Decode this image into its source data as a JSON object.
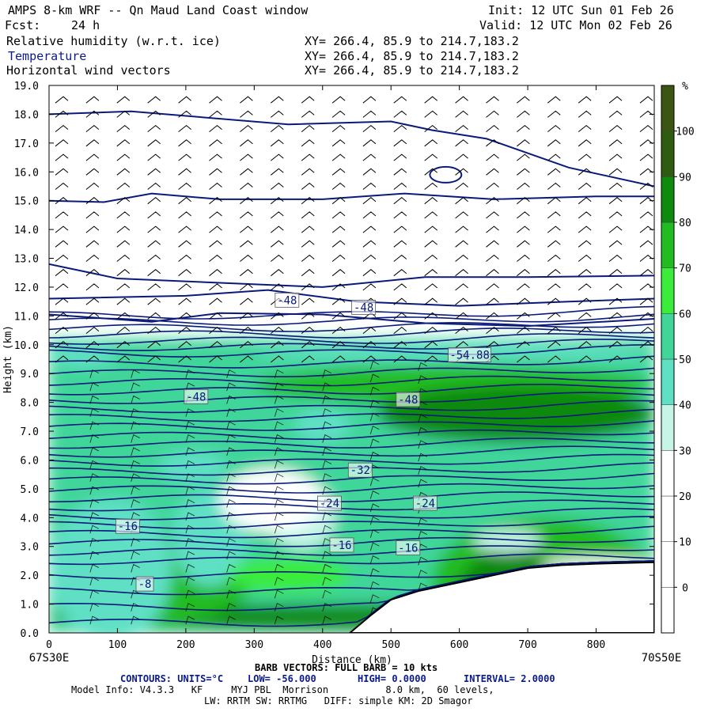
{
  "header": {
    "model_title": "AMPS 8-km WRF -- Qn Maud Land Coast window",
    "init": "Init: 12 UTC Sun 01 Feb 26",
    "fcst_label": "Fcst:",
    "fcst_value": "24 h",
    "valid": "Valid: 12 UTC Mon 02 Feb 26",
    "fields": [
      {
        "name": "Relative humidity (w.r.t. ice)",
        "xy": "XY= 266.4, 85.9 to 214.7,183.2"
      },
      {
        "name": "Temperature",
        "xy": "XY= 266.4, 85.9 to 214.7,183.2"
      },
      {
        "name": "Horizontal wind vectors",
        "xy": "XY= 266.4, 85.9 to 214.7,183.2"
      }
    ]
  },
  "chart_data": {
    "type": "heatmap",
    "xlabel": "Distance (km)",
    "ylabel": "Height (km)",
    "xlim": [
      0,
      885
    ],
    "ylim": [
      0,
      19
    ],
    "x_ticks": [
      "0",
      "100",
      "200",
      "300",
      "400",
      "500",
      "600",
      "700",
      "800"
    ],
    "y_ticks": [
      "0.0",
      "1.0",
      "2.0",
      "3.0",
      "4.0",
      "5.0",
      "6.0",
      "7.0",
      "8.0",
      "9.0",
      "10.0",
      "11.0",
      "12.0",
      "13.0",
      "14.0",
      "15.0",
      "16.0",
      "17.0",
      "18.0",
      "19.0"
    ],
    "left_endpoint": "67S30E",
    "right_endpoint": "70S50E",
    "colorbar": {
      "unit": "%",
      "labels": [
        "0",
        "10",
        "20",
        "30",
        "40",
        "50",
        "60",
        "70",
        "80",
        "90",
        "100"
      ],
      "colors": [
        "#ffffff",
        "#ffffff",
        "#ffffff",
        "#ffffff",
        "#c6f5e8",
        "#5fe0c4",
        "#40d69a",
        "#3bec3b",
        "#22bc22",
        "#0e8a0e",
        "#2f5c10",
        "#3a5612"
      ]
    },
    "temperature_labels": [
      {
        "text": "-48",
        "x": 348,
        "y": 11.55
      },
      {
        "text": "-48",
        "x": 460,
        "y": 11.3
      },
      {
        "text": "-54.88",
        "x": 615,
        "y": 9.65
      },
      {
        "text": "-48",
        "x": 215,
        "y": 8.2
      },
      {
        "text": "-48",
        "x": 525,
        "y": 8.1
      },
      {
        "text": "-32",
        "x": 455,
        "y": 5.65
      },
      {
        "text": "-24",
        "x": 410,
        "y": 4.5
      },
      {
        "text": "-24",
        "x": 550,
        "y": 4.5
      },
      {
        "text": "-16",
        "x": 115,
        "y": 3.7
      },
      {
        "text": "-16",
        "x": 428,
        "y": 3.05
      },
      {
        "text": "-16",
        "x": 525,
        "y": 2.95
      },
      {
        "text": "-8",
        "x": 140,
        "y": 1.7
      }
    ],
    "terrain_profile": [
      [
        440,
        0
      ],
      [
        470,
        0.6
      ],
      [
        500,
        1.15
      ],
      [
        540,
        1.45
      ],
      [
        580,
        1.65
      ],
      [
        620,
        1.85
      ],
      [
        660,
        2.05
      ],
      [
        700,
        2.25
      ],
      [
        750,
        2.35
      ],
      [
        800,
        2.4
      ],
      [
        885,
        2.45
      ]
    ]
  },
  "footer": {
    "barb_note": "BARB VECTORS: FULL BARB = 10 kts",
    "contours_units": "CONTOURS: UNITS=°C",
    "low": "LOW= -56.000",
    "high": "HIGH= 0.0000",
    "interval": "INTERVAL= 2.0000",
    "model_info": "Model Info: V4.3.3   KF     MYJ PBL  Morrison          8.0 km,  60 levels,",
    "physics": "LW: RRTM SW: RRTMG   DIFF: simple KM: 2D Smagor"
  }
}
